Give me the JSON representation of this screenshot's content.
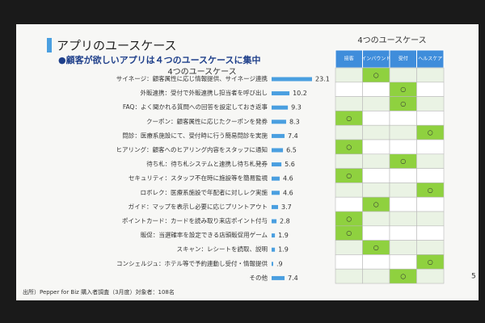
{
  "slide": {
    "title": "アプリのユースケース",
    "subtitle": "●顧客が欲しいアプリは４つのユースケースに集中",
    "source": "出所）Pepper for Biz 購入者調査（3月度）対象者：108名",
    "page": "5"
  },
  "chart_data": {
    "type": "bar",
    "orientation": "horizontal",
    "title": "4つのユースケース",
    "color": "#4a9fe0",
    "categories": [
      "サイネージ：顧客属性に応じ情報提供、サイネージ連携",
      "外販連携：受付で外販連携し担当者を呼び出し",
      "FAQ：よく聞かれる質問への回答を設定しておき返事",
      "クーポン：顧客属性に応じたクーポンを発券",
      "問診：医療系施設にて、受付時に行う簡易問診を実施",
      "ヒアリング：顧客へのヒアリング内容をスタッフに通知",
      "待ち札：待ち札システムと連携し待ち札発券",
      "セキュリティ：スタッフ不在時に施設等を簡易監視",
      "ロボレク：医療系施設で年配者に対しレク実施",
      "ガイド：マップを表示し必要に応じプリントアウト",
      "ポイントカード：カードを読み取り来店ポイント付与",
      "販促：当選確率を設定できる店頭販促用ゲーム",
      "スキャン：レシートを読取、説明",
      "コンシェルジュ：ホテル等で予約連動し受付・情報提供",
      "その他"
    ],
    "values": [
      23.1,
      10.2,
      9.3,
      8.3,
      7.4,
      6.5,
      5.6,
      4.6,
      4.6,
      3.7,
      2.8,
      1.9,
      1.9,
      0.9,
      7.4
    ],
    "value_labels": [
      "23.1",
      "10.2",
      "9.3",
      "8.3",
      "7.4",
      "6.5",
      "5.6",
      "4.6",
      "4.6",
      "3.7",
      "2.8",
      "1.9",
      "1.9",
      ".9",
      "7.4"
    ]
  },
  "matrix": {
    "title": "4つのユースケース",
    "columns": [
      "接客",
      "インバウンド",
      "受付",
      "ヘルスケア"
    ],
    "rows": [
      [
        null,
        "○",
        null,
        null
      ],
      [
        null,
        null,
        "○",
        null
      ],
      [
        null,
        null,
        "○",
        null
      ],
      [
        "○",
        null,
        null,
        null
      ],
      [
        null,
        null,
        null,
        "○"
      ],
      [
        "○",
        null,
        null,
        null
      ],
      [
        null,
        null,
        "○",
        null
      ],
      [
        "○",
        null,
        null,
        null
      ],
      [
        null,
        null,
        null,
        "○"
      ],
      [
        null,
        "○",
        null,
        null
      ],
      [
        "○",
        null,
        null,
        null
      ],
      [
        "○",
        null,
        null,
        null
      ],
      [
        null,
        "○",
        null,
        null
      ],
      [
        null,
        null,
        null,
        "○"
      ],
      [
        null,
        null,
        "○",
        null
      ]
    ]
  }
}
